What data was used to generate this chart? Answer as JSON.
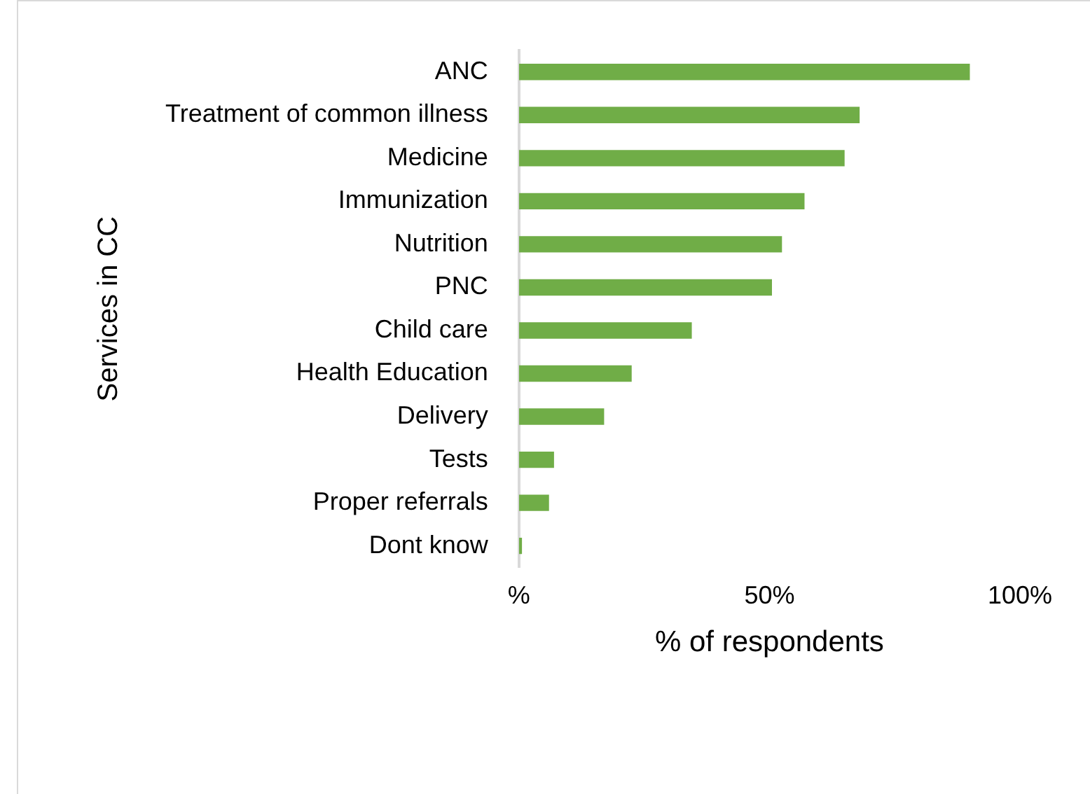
{
  "chart_data": {
    "type": "bar",
    "orientation": "horizontal",
    "categories": [
      "ANC",
      "Treatment of common illness",
      "Medicine",
      "Immunization",
      "Nutrition",
      "PNC",
      "Child care",
      "Health Education",
      "Delivery",
      "Tests",
      "Proper referrals",
      "Dont know"
    ],
    "values": [
      90,
      68,
      65,
      57,
      52.5,
      50.5,
      34.5,
      22.5,
      17,
      7,
      6,
      0.6
    ],
    "color": "#70ad47",
    "xlabel": "% of respondents",
    "ylabel": "Services in CC",
    "xlim": [
      0,
      100
    ],
    "xticks": [
      {
        "value": 0,
        "label": "%"
      },
      {
        "value": 50,
        "label": "50%"
      },
      {
        "value": 100,
        "label": "100%"
      }
    ],
    "grid": false,
    "legend": false
  }
}
